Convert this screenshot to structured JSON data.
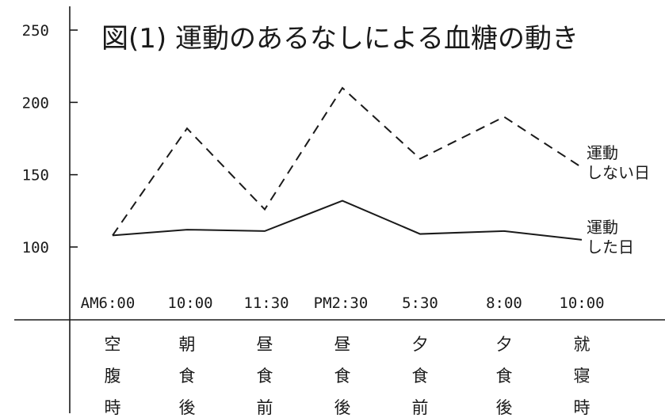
{
  "chart_data": {
    "type": "line",
    "title": "図(1) 運動のあるなしによる血糖の動き",
    "y_ticks": [
      100,
      150,
      200,
      250
    ],
    "ylim": [
      100,
      250
    ],
    "x": [
      {
        "time": "AM6:00",
        "label": [
          "空",
          "腹",
          "時"
        ]
      },
      {
        "time": "10:00",
        "label": [
          "朝",
          "食",
          "後"
        ]
      },
      {
        "time": "11:30",
        "label": [
          "昼",
          "食",
          "前"
        ]
      },
      {
        "time": "PM2:30",
        "label": [
          "昼",
          "食",
          "後"
        ]
      },
      {
        "time": "5:30",
        "label": [
          "夕",
          "食",
          "前"
        ]
      },
      {
        "time": "8:00",
        "label": [
          "夕",
          "食",
          "後"
        ]
      },
      {
        "time": "10:00",
        "label": [
          "就",
          "寝",
          "時"
        ]
      }
    ],
    "series": [
      {
        "name": "運動しない日",
        "name_lines": [
          "運動",
          "しない日"
        ],
        "style": "dashed",
        "values": [
          108,
          182,
          126,
          210,
          161,
          190,
          155
        ]
      },
      {
        "name": "運動した日",
        "name_lines": [
          "運動",
          "した日"
        ],
        "style": "solid",
        "values": [
          108,
          112,
          111,
          132,
          109,
          111,
          105
        ]
      }
    ],
    "grid": false,
    "line_color": "#1a1a1a"
  }
}
